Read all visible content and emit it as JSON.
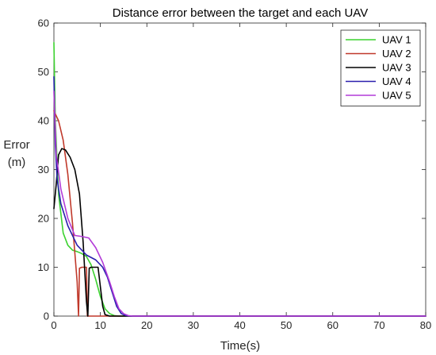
{
  "chart_data": {
    "type": "line",
    "title": "Distance error between the target and each UAV",
    "xlabel": "Time(s)",
    "ylabel_line1": "Error",
    "ylabel_line2": "(m)",
    "xlim": [
      0,
      80
    ],
    "ylim": [
      0,
      60
    ],
    "xticks": [
      0,
      10,
      20,
      30,
      40,
      50,
      60,
      70,
      80
    ],
    "yticks": [
      0,
      10,
      20,
      30,
      40,
      50,
      60
    ],
    "grid": false,
    "legend_position": "top-right",
    "series": [
      {
        "name": "UAV 1",
        "color": "#3cd22f",
        "points": [
          [
            0,
            56
          ],
          [
            0.3,
            40
          ],
          [
            1,
            25
          ],
          [
            2,
            17
          ],
          [
            3,
            14.5
          ],
          [
            4,
            13.5
          ],
          [
            5,
            13.2
          ],
          [
            6,
            12.8
          ],
          [
            7,
            12.2
          ],
          [
            8,
            10.5
          ],
          [
            9,
            7.5
          ],
          [
            10,
            4
          ],
          [
            11,
            1.5
          ],
          [
            12,
            0.5
          ],
          [
            13,
            0.1
          ],
          [
            14,
            0
          ],
          [
            80,
            0
          ]
        ]
      },
      {
        "name": "UAV 2",
        "color": "#c0392b",
        "points": [
          [
            0,
            42
          ],
          [
            0.5,
            41
          ],
          [
            1,
            40
          ],
          [
            2,
            36
          ],
          [
            3,
            29
          ],
          [
            4,
            19
          ],
          [
            5,
            7
          ],
          [
            5.3,
            0
          ],
          [
            5.5,
            9.8
          ],
          [
            6,
            10
          ],
          [
            7,
            10
          ],
          [
            7.2,
            0
          ],
          [
            80,
            0
          ]
        ]
      },
      {
        "name": "UAV 3",
        "color": "#000000",
        "points": [
          [
            0,
            22
          ],
          [
            0.5,
            27
          ],
          [
            1,
            33
          ],
          [
            1.7,
            34.3
          ],
          [
            2.5,
            34
          ],
          [
            3.5,
            32.5
          ],
          [
            4.5,
            30
          ],
          [
            5.5,
            25
          ],
          [
            6.3,
            15
          ],
          [
            7,
            3
          ],
          [
            7.3,
            0
          ],
          [
            7.6,
            9.8
          ],
          [
            8,
            10
          ],
          [
            9,
            10
          ],
          [
            9.5,
            10
          ],
          [
            10,
            6
          ],
          [
            10.5,
            2
          ],
          [
            11,
            0.3
          ],
          [
            12,
            0
          ],
          [
            80,
            0
          ]
        ]
      },
      {
        "name": "UAV 4",
        "color": "#2a1fae",
        "points": [
          [
            0,
            49
          ],
          [
            0.3,
            35
          ],
          [
            0.7,
            28
          ],
          [
            1.5,
            23
          ],
          [
            3,
            18.5
          ],
          [
            5,
            14.5
          ],
          [
            7,
            12.5
          ],
          [
            9,
            11.5
          ],
          [
            10.5,
            10
          ],
          [
            11.5,
            8
          ],
          [
            12.5,
            5
          ],
          [
            13.5,
            2
          ],
          [
            14.5,
            0.5
          ],
          [
            15.5,
            0.1
          ],
          [
            16.5,
            0
          ],
          [
            80,
            0
          ]
        ]
      },
      {
        "name": "UAV 5",
        "color": "#b23bd8",
        "points": [
          [
            0,
            46
          ],
          [
            0.5,
            33
          ],
          [
            1.5,
            26
          ],
          [
            3,
            20
          ],
          [
            4.5,
            16.5
          ],
          [
            6,
            16.3
          ],
          [
            7.5,
            16
          ],
          [
            9,
            14
          ],
          [
            10.5,
            11
          ],
          [
            12,
            7
          ],
          [
            13,
            4
          ],
          [
            14,
            1.5
          ],
          [
            15,
            0.5
          ],
          [
            16,
            0.1
          ],
          [
            17,
            0
          ],
          [
            80,
            0
          ]
        ]
      }
    ]
  }
}
